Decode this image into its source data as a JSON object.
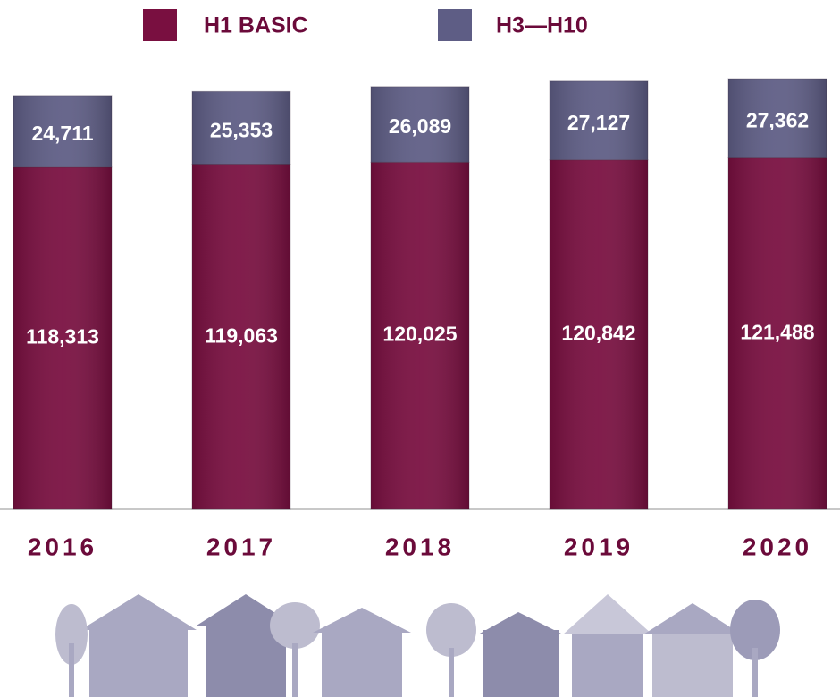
{
  "chart_data": {
    "type": "stacked_bar",
    "categories": [
      "2016",
      "2017",
      "2018",
      "2019",
      "2020"
    ],
    "series": [
      {
        "name": "H1 BASIC",
        "color": "#790f40",
        "values": [
          118313,
          119063,
          120025,
          120842,
          121488
        ],
        "value_labels": [
          "118,313",
          "119,063",
          "120,025",
          "120,842",
          "121,488"
        ]
      },
      {
        "name": "H3—H10",
        "color": "#5e5d85",
        "values": [
          24711,
          25353,
          26089,
          27127,
          27362
        ],
        "value_labels": [
          "24,711",
          "25,353",
          "26,089",
          "27,127",
          "27,362"
        ]
      }
    ]
  }
}
